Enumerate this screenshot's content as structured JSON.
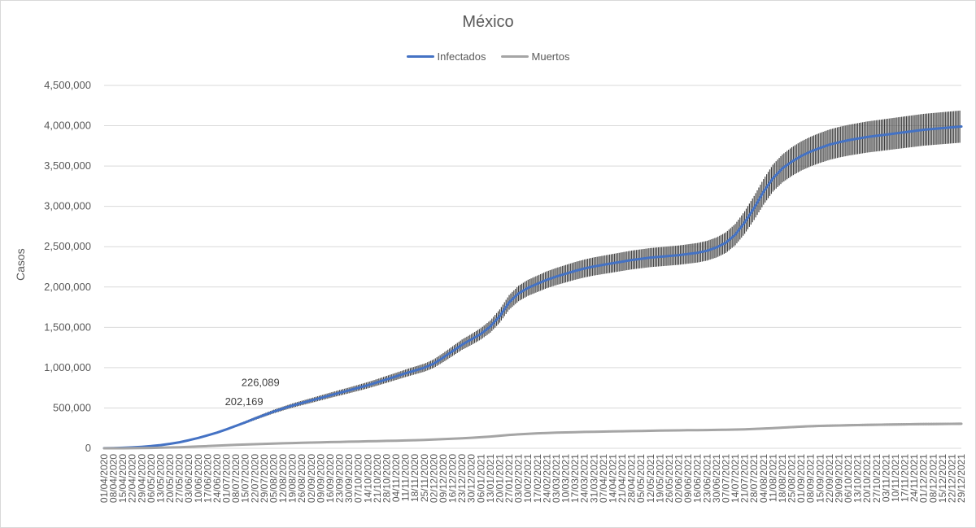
{
  "chart_data": {
    "type": "line",
    "title": "México",
    "xlabel": "",
    "ylabel": "Casos",
    "ylim": [
      0,
      4500000
    ],
    "yticks": [
      "0",
      "500,000",
      "1,000,000",
      "1,500,000",
      "2,000,000",
      "2,500,000",
      "3,000,000",
      "3,500,000",
      "4,000,000",
      "4,500,000"
    ],
    "ytick_values": [
      0,
      500000,
      1000000,
      1500000,
      2000000,
      2500000,
      3000000,
      3500000,
      4000000,
      4500000
    ],
    "x_categories": [
      "01/04/2020",
      "08/04/2020",
      "15/04/2020",
      "22/04/2020",
      "29/04/2020",
      "06/05/2020",
      "13/05/2020",
      "20/05/2020",
      "27/05/2020",
      "03/06/2020",
      "10/06/2020",
      "17/06/2020",
      "24/06/2020",
      "01/07/2020",
      "08/07/2020",
      "15/07/2020",
      "22/07/2020",
      "29/07/2020",
      "05/08/2020",
      "12/08/2020",
      "19/08/2020",
      "26/08/2020",
      "02/09/2020",
      "09/09/2020",
      "16/09/2020",
      "23/09/2020",
      "30/09/2020",
      "07/10/2020",
      "14/10/2020",
      "21/10/2020",
      "28/10/2020",
      "04/11/2020",
      "11/11/2020",
      "18/11/2020",
      "25/11/2020",
      "02/12/2020",
      "09/12/2020",
      "16/12/2020",
      "23/12/2020",
      "30/12/2020",
      "06/01/2021",
      "13/01/2021",
      "20/01/2021",
      "27/01/2021",
      "03/02/2021",
      "10/02/2021",
      "17/02/2021",
      "24/02/2021",
      "03/03/2021",
      "10/03/2021",
      "17/03/2021",
      "24/03/2021",
      "31/03/2021",
      "07/04/2021",
      "14/04/2021",
      "21/04/2021",
      "28/04/2021",
      "05/05/2021",
      "12/05/2021",
      "19/05/2021",
      "26/05/2021",
      "02/06/2021",
      "09/06/2021",
      "16/06/2021",
      "23/06/2021",
      "30/06/2021",
      "07/07/2021",
      "14/07/2021",
      "21/07/2021",
      "28/07/2021",
      "04/08/2021",
      "11/08/2021",
      "18/08/2021",
      "25/08/2021",
      "01/09/2021",
      "08/09/2021",
      "15/09/2021",
      "22/09/2021",
      "29/09/2021",
      "06/10/2021",
      "13/10/2021",
      "20/10/2021",
      "27/10/2021",
      "03/11/2021",
      "10/11/2021",
      "17/11/2021",
      "24/11/2021",
      "01/12/2021",
      "08/12/2021",
      "15/12/2021",
      "22/12/2021",
      "29/12/2021"
    ],
    "grid": true,
    "legend_position": "top",
    "series": [
      {
        "name": "Infectados",
        "color": "#4472c4",
        "error_bars": true,
        "values": [
          1500,
          3000,
          6000,
          11000,
          18000,
          27000,
          39000,
          55000,
          75000,
          100000,
          128000,
          160000,
          195000,
          235000,
          278000,
          322000,
          368000,
          412000,
          455000,
          493000,
          530000,
          562000,
          593000,
          625000,
          657000,
          688000,
          718000,
          750000,
          782000,
          818000,
          855000,
          892000,
          930000,
          965000,
          1000000,
          1050000,
          1125000,
          1205000,
          1285000,
          1350000,
          1420000,
          1510000,
          1640000,
          1810000,
          1920000,
          1990000,
          2040000,
          2090000,
          2130000,
          2165000,
          2200000,
          2230000,
          2255000,
          2275000,
          2295000,
          2315000,
          2335000,
          2350000,
          2365000,
          2375000,
          2385000,
          2395000,
          2410000,
          2425000,
          2450000,
          2490000,
          2550000,
          2650000,
          2800000,
          2980000,
          3180000,
          3350000,
          3470000,
          3555000,
          3625000,
          3680000,
          3725000,
          3765000,
          3795000,
          3820000,
          3840000,
          3860000,
          3875000,
          3890000,
          3905000,
          3920000,
          3935000,
          3950000,
          3960000,
          3970000,
          3980000,
          3990000
        ]
      },
      {
        "name": "Muertos",
        "color": "#a5a5a5",
        "error_bars": true,
        "values": [
          50,
          200,
          500,
          1200,
          2500,
          4500,
          7000,
          10000,
          13500,
          17500,
          22000,
          27000,
          32000,
          37000,
          42000,
          46000,
          50000,
          54000,
          58000,
          62000,
          65000,
          68000,
          71000,
          74000,
          76500,
          79000,
          81500,
          84000,
          86500,
          89000,
          91500,
          94000,
          97000,
          100000,
          104000,
          108000,
          113000,
          118000,
          123000,
          130000,
          137000,
          145000,
          155000,
          165000,
          173000,
          180000,
          186000,
          190000,
          194000,
          197000,
          200000,
          203000,
          205000,
          207000,
          209000,
          211000,
          213000,
          215000,
          217000,
          219000,
          220500,
          222000,
          223500,
          225000,
          226500,
          228000,
          230000,
          232000,
          235000,
          240000,
          245000,
          250000,
          256000,
          262000,
          268000,
          273000,
          277000,
          280000,
          283000,
          286000,
          288000,
          290000,
          292000,
          294000,
          295500,
          297000,
          298500,
          300000,
          301000,
          302000,
          303000,
          304000
        ]
      }
    ],
    "annotations": [
      "226,089",
      "202,169"
    ]
  }
}
